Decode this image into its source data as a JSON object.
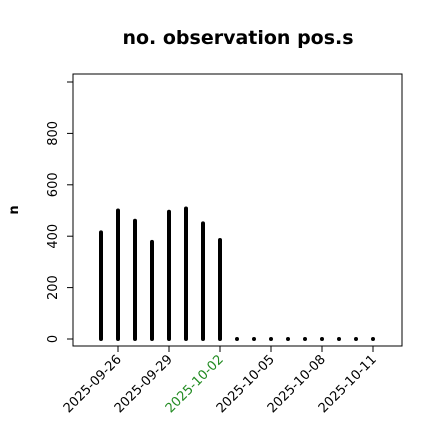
{
  "chart_data": {
    "type": "bar",
    "title": "no. observation pos.s",
    "xlabel": "",
    "ylabel": "n",
    "x": [
      "2025-09-25",
      "2025-09-26",
      "2025-09-27",
      "2025-09-28",
      "2025-09-29",
      "2025-09-30",
      "2025-10-01",
      "2025-10-02",
      "2025-10-03",
      "2025-10-04",
      "2025-10-05",
      "2025-10-06",
      "2025-10-07",
      "2025-10-08",
      "2025-10-09",
      "2025-10-10",
      "2025-10-11"
    ],
    "values": [
      415,
      500,
      460,
      378,
      495,
      508,
      450,
      385,
      0,
      0,
      0,
      0,
      0,
      0,
      0,
      0,
      0
    ],
    "ylim": [
      0,
      1000
    ],
    "yticks": [
      0,
      200,
      400,
      600,
      800
    ],
    "xtick_labels": [
      {
        "label": "2025-09-26",
        "x": "2025-09-26",
        "color": "#000000"
      },
      {
        "label": "2025-09-29",
        "x": "2025-09-29",
        "color": "#000000"
      },
      {
        "label": "2025-10-02",
        "x": "2025-10-02",
        "color": "#228B22"
      },
      {
        "label": "2025-10-05",
        "x": "2025-10-05",
        "color": "#000000"
      },
      {
        "label": "2025-10-08",
        "x": "2025-10-08",
        "color": "#000000"
      },
      {
        "label": "2025-10-11",
        "x": "2025-10-11",
        "color": "#000000"
      }
    ],
    "bar_color": "#000000",
    "grid": false,
    "legend": "none"
  }
}
